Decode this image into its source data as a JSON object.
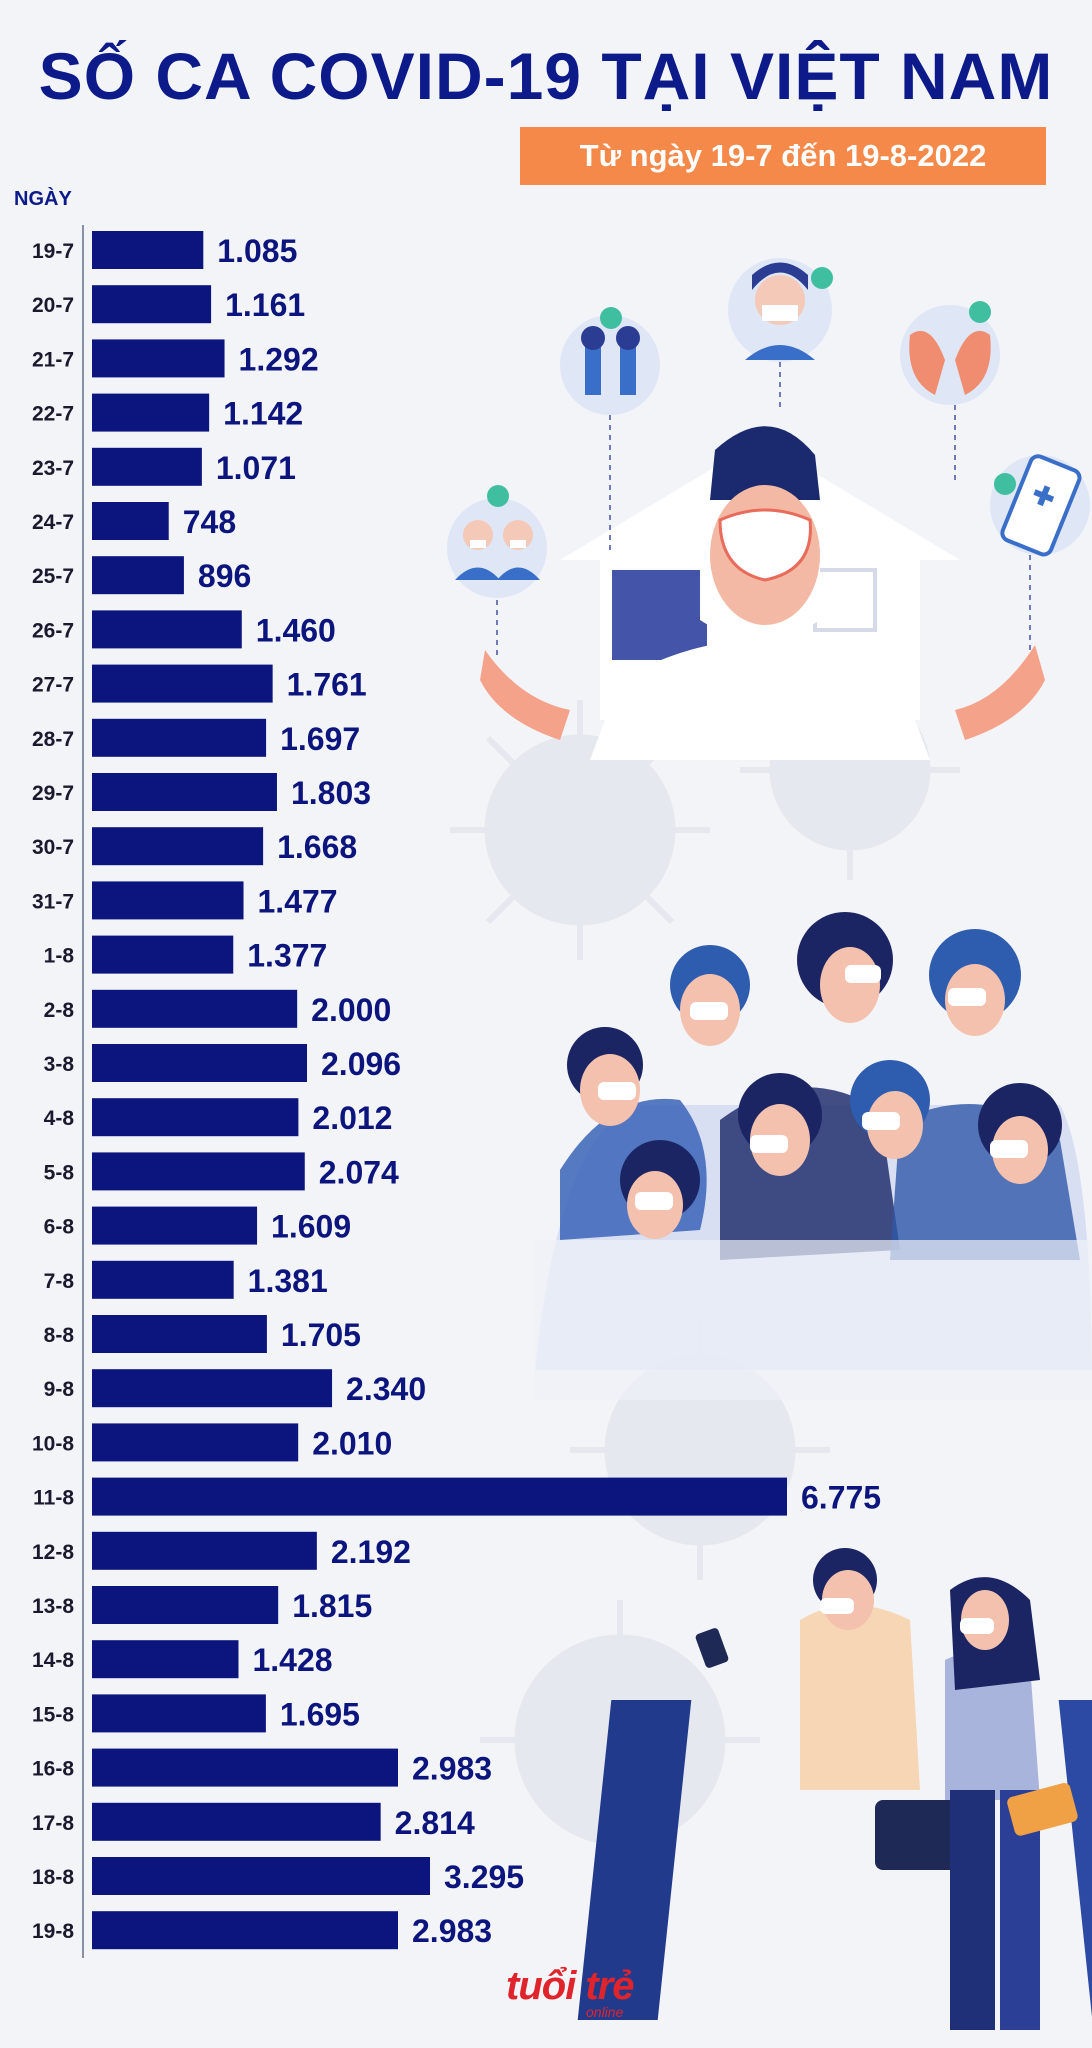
{
  "header": {
    "title": "SỐ CA COVID-19 TẠI VIỆT NAM",
    "subtitle": "Từ ngày 19-7 đến 19-8-2022"
  },
  "logo": {
    "text": "tuổi trẻ",
    "sub": "online"
  },
  "colors": {
    "bar": "#0b157d",
    "title": "#0c1a8a",
    "accent": "#f5894a"
  },
  "chart_data": {
    "type": "bar",
    "orientation": "horizontal",
    "ylabel": "NGÀY",
    "categories": [
      "19-7",
      "20-7",
      "21-7",
      "22-7",
      "23-7",
      "24-7",
      "25-7",
      "26-7",
      "27-7",
      "28-7",
      "29-7",
      "30-7",
      "31-7",
      "1-8",
      "2-8",
      "3-8",
      "4-8",
      "5-8",
      "6-8",
      "7-8",
      "8-8",
      "9-8",
      "10-8",
      "11-8",
      "12-8",
      "13-8",
      "14-8",
      "15-8",
      "16-8",
      "17-8",
      "18-8",
      "19-8"
    ],
    "values": [
      1085,
      1161,
      1292,
      1142,
      1071,
      748,
      896,
      1460,
      1761,
      1697,
      1803,
      1668,
      1477,
      1377,
      2000,
      2096,
      2012,
      2074,
      1609,
      1381,
      1705,
      2340,
      2010,
      6775,
      2192,
      1815,
      1428,
      1695,
      2983,
      2814,
      3295,
      2983
    ],
    "value_labels": [
      "1.085",
      "1.161",
      "1.292",
      "1.142",
      "1.071",
      "748",
      "896",
      "1.460",
      "1.761",
      "1.697",
      "1.803",
      "1.668",
      "1.477",
      "1.377",
      "2.000",
      "2.096",
      "2.012",
      "2.074",
      "1.609",
      "1.381",
      "1.705",
      "2.340",
      "2.010",
      "6.775",
      "2.192",
      "1.815",
      "1.428",
      "1.695",
      "2.983",
      "2.814",
      "3.295",
      "2.983"
    ],
    "grid": false,
    "legend": "none"
  }
}
